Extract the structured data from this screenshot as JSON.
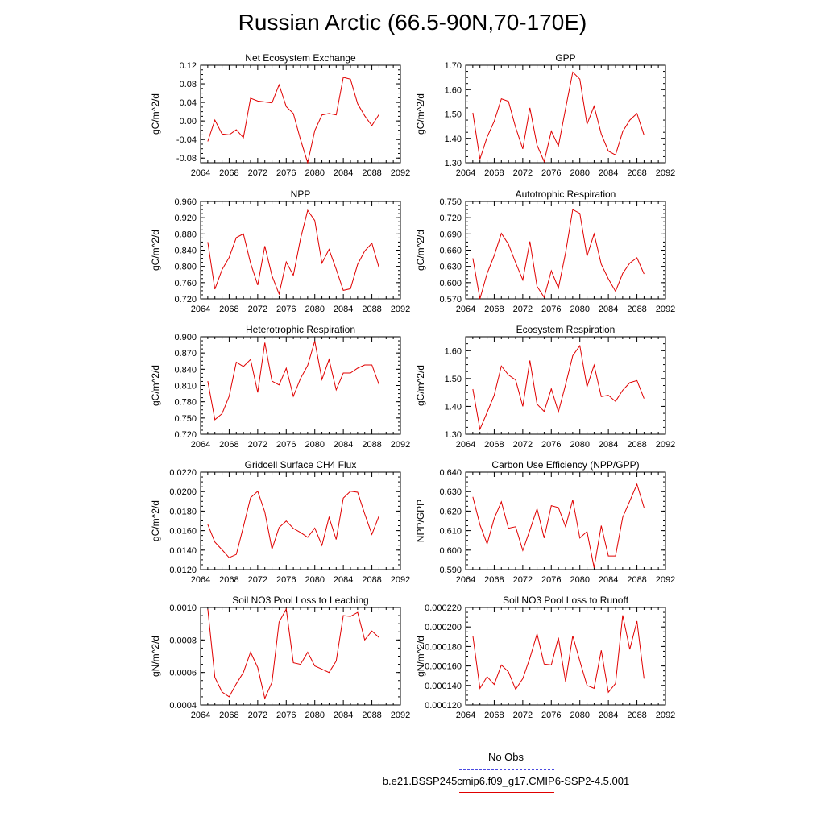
{
  "title": "Russian Arctic (66.5-90N,70-170E)",
  "legend": {
    "obs_label": "No Obs",
    "model_label": "b.e21.BSSP245cmip6.f09_g17.CMIP6-SSP2-4.5.001",
    "obs_color": "#4a4ae0",
    "model_color": "#e00000"
  },
  "chart_data": [
    {
      "type": "line",
      "title": "Net Ecosystem Exchange",
      "ylabel": "gC/m^2/d",
      "xlabel": "",
      "xlim": [
        2064,
        2092
      ],
      "ylim": [
        -0.09,
        0.12
      ],
      "xticks": [
        "2064",
        "2068",
        "2072",
        "2076",
        "2080",
        "2084",
        "2088",
        "2092"
      ],
      "yticks": [
        "-0.08",
        "-0.04",
        "0.00",
        "0.04",
        "0.08",
        "0.12"
      ],
      "x": [
        2065,
        2066,
        2067,
        2068,
        2069,
        2070,
        2071,
        2072,
        2073,
        2074,
        2075,
        2076,
        2077,
        2078,
        2079,
        2080,
        2081,
        2082,
        2083,
        2084,
        2085,
        2086,
        2087,
        2088,
        2089
      ],
      "values": [
        -0.044,
        0.002,
        -0.028,
        -0.03,
        -0.019,
        -0.036,
        0.049,
        0.043,
        0.041,
        0.039,
        0.078,
        0.031,
        0.016,
        -0.04,
        -0.09,
        -0.021,
        0.013,
        0.016,
        0.013,
        0.094,
        0.09,
        0.037,
        0.011,
        -0.01,
        0.014
      ]
    },
    {
      "type": "line",
      "title": "GPP",
      "ylabel": "gC/m^2/d",
      "xlabel": "",
      "xlim": [
        2064,
        2092
      ],
      "ylim": [
        1.3,
        1.7
      ],
      "xticks": [
        "2064",
        "2068",
        "2072",
        "2076",
        "2080",
        "2084",
        "2088",
        "2092"
      ],
      "yticks": [
        "1.30",
        "1.40",
        "1.50",
        "1.60",
        "1.70"
      ],
      "x": [
        2065,
        2066,
        2067,
        2068,
        2069,
        2070,
        2071,
        2072,
        2073,
        2074,
        2075,
        2076,
        2077,
        2078,
        2079,
        2080,
        2081,
        2082,
        2083,
        2084,
        2085,
        2086,
        2087,
        2088,
        2089
      ],
      "values": [
        1.505,
        1.315,
        1.405,
        1.47,
        1.562,
        1.552,
        1.445,
        1.357,
        1.525,
        1.372,
        1.305,
        1.43,
        1.368,
        1.522,
        1.672,
        1.643,
        1.458,
        1.532,
        1.418,
        1.348,
        1.332,
        1.428,
        1.475,
        1.502,
        1.413
      ]
    },
    {
      "type": "line",
      "title": "NPP",
      "ylabel": "gC/m^2/d",
      "xlabel": "",
      "xlim": [
        2064,
        2092
      ],
      "ylim": [
        0.72,
        0.96
      ],
      "xticks": [
        "2064",
        "2068",
        "2072",
        "2076",
        "2080",
        "2084",
        "2088",
        "2092"
      ],
      "yticks": [
        "0.720",
        "0.760",
        "0.800",
        "0.840",
        "0.880",
        "0.920",
        "0.960"
      ],
      "x": [
        2065,
        2066,
        2067,
        2068,
        2069,
        2070,
        2071,
        2072,
        2073,
        2074,
        2075,
        2076,
        2077,
        2078,
        2079,
        2080,
        2081,
        2082,
        2083,
        2084,
        2085,
        2086,
        2087,
        2088,
        2089
      ],
      "values": [
        0.86,
        0.744,
        0.792,
        0.822,
        0.871,
        0.88,
        0.808,
        0.754,
        0.85,
        0.777,
        0.732,
        0.811,
        0.778,
        0.868,
        0.938,
        0.913,
        0.808,
        0.842,
        0.793,
        0.741,
        0.745,
        0.805,
        0.838,
        0.857,
        0.797
      ]
    },
    {
      "type": "line",
      "title": "Autotrophic Respiration",
      "ylabel": "gC/m^2/d",
      "xlabel": "",
      "xlim": [
        2064,
        2092
      ],
      "ylim": [
        0.57,
        0.75
      ],
      "xticks": [
        "2064",
        "2068",
        "2072",
        "2076",
        "2080",
        "2084",
        "2088",
        "2092"
      ],
      "yticks": [
        "0.570",
        "0.600",
        "0.630",
        "0.660",
        "0.690",
        "0.720",
        "0.750"
      ],
      "x": [
        2065,
        2066,
        2067,
        2068,
        2069,
        2070,
        2071,
        2072,
        2073,
        2074,
        2075,
        2076,
        2077,
        2078,
        2079,
        2080,
        2081,
        2082,
        2083,
        2084,
        2085,
        2086,
        2087,
        2088,
        2089
      ],
      "values": [
        0.645,
        0.57,
        0.617,
        0.65,
        0.691,
        0.671,
        0.637,
        0.605,
        0.676,
        0.593,
        0.573,
        0.622,
        0.59,
        0.655,
        0.735,
        0.728,
        0.649,
        0.69,
        0.634,
        0.607,
        0.584,
        0.617,
        0.636,
        0.646,
        0.616
      ]
    },
    {
      "type": "line",
      "title": "Heterotrophic Respiration",
      "ylabel": "gC/m^2/d",
      "xlabel": "",
      "xlim": [
        2064,
        2092
      ],
      "ylim": [
        0.72,
        0.9
      ],
      "xticks": [
        "2064",
        "2068",
        "2072",
        "2076",
        "2080",
        "2084",
        "2088",
        "2092"
      ],
      "yticks": [
        "0.720",
        "0.750",
        "0.780",
        "0.810",
        "0.840",
        "0.870",
        "0.900"
      ],
      "x": [
        2065,
        2066,
        2067,
        2068,
        2069,
        2070,
        2071,
        2072,
        2073,
        2074,
        2075,
        2076,
        2077,
        2078,
        2079,
        2080,
        2081,
        2082,
        2083,
        2084,
        2085,
        2086,
        2087,
        2088,
        2089
      ],
      "values": [
        0.818,
        0.747,
        0.758,
        0.79,
        0.853,
        0.845,
        0.858,
        0.797,
        0.889,
        0.818,
        0.811,
        0.842,
        0.79,
        0.823,
        0.847,
        0.892,
        0.821,
        0.858,
        0.802,
        0.833,
        0.833,
        0.842,
        0.848,
        0.848,
        0.812
      ]
    },
    {
      "type": "line",
      "title": "Ecosystem Respiration",
      "ylabel": "gC/m^2/d",
      "xlabel": "",
      "xlim": [
        2064,
        2092
      ],
      "ylim": [
        1.3,
        1.65
      ],
      "xticks": [
        "2064",
        "2068",
        "2072",
        "2076",
        "2080",
        "2084",
        "2088",
        "2092"
      ],
      "yticks": [
        "1.30",
        "1.40",
        "1.50",
        "1.60"
      ],
      "x": [
        2065,
        2066,
        2067,
        2068,
        2069,
        2070,
        2071,
        2072,
        2073,
        2074,
        2075,
        2076,
        2077,
        2078,
        2079,
        2080,
        2081,
        2082,
        2083,
        2084,
        2085,
        2086,
        2087,
        2088,
        2089
      ],
      "values": [
        1.462,
        1.318,
        1.378,
        1.44,
        1.545,
        1.513,
        1.495,
        1.4,
        1.565,
        1.408,
        1.382,
        1.463,
        1.38,
        1.478,
        1.582,
        1.618,
        1.47,
        1.548,
        1.435,
        1.44,
        1.418,
        1.458,
        1.485,
        1.493,
        1.428
      ]
    },
    {
      "type": "line",
      "title": "Gridcell Surface CH4 Flux",
      "ylabel": "gC/m^2/d",
      "xlabel": "",
      "xlim": [
        2064,
        2092
      ],
      "ylim": [
        0.012,
        0.022
      ],
      "xticks": [
        "2064",
        "2068",
        "2072",
        "2076",
        "2080",
        "2084",
        "2088",
        "2092"
      ],
      "yticks": [
        "0.0120",
        "0.0140",
        "0.0160",
        "0.0180",
        "0.0200",
        "0.0220"
      ],
      "x": [
        2065,
        2066,
        2067,
        2068,
        2069,
        2070,
        2071,
        2072,
        2073,
        2074,
        2075,
        2076,
        2077,
        2078,
        2079,
        2080,
        2081,
        2082,
        2083,
        2084,
        2085,
        2086,
        2087,
        2088,
        2089
      ],
      "values": [
        0.01662,
        0.01482,
        0.01403,
        0.01322,
        0.01355,
        0.0164,
        0.01937,
        0.02003,
        0.01791,
        0.0141,
        0.01631,
        0.01698,
        0.01622,
        0.01581,
        0.01531,
        0.01626,
        0.01449,
        0.01736,
        0.01509,
        0.01933,
        0.02003,
        0.01993,
        0.01771,
        0.01561,
        0.0175
      ]
    },
    {
      "type": "line",
      "title": "Carbon Use Efficiency (NPP/GPP)",
      "ylabel": "NPP/GPP",
      "xlabel": "",
      "xlim": [
        2064,
        2092
      ],
      "ylim": [
        0.59,
        0.64
      ],
      "xticks": [
        "2064",
        "2068",
        "2072",
        "2076",
        "2080",
        "2084",
        "2088",
        "2092"
      ],
      "yticks": [
        "0.590",
        "0.600",
        "0.610",
        "0.620",
        "0.630",
        "0.640"
      ],
      "x": [
        2065,
        2066,
        2067,
        2068,
        2069,
        2070,
        2071,
        2072,
        2073,
        2074,
        2075,
        2076,
        2077,
        2078,
        2079,
        2080,
        2081,
        2082,
        2083,
        2084,
        2085,
        2086,
        2087,
        2088,
        2089
      ],
      "values": [
        0.6273,
        0.613,
        0.6032,
        0.6162,
        0.6248,
        0.6112,
        0.612,
        0.5998,
        0.6103,
        0.6212,
        0.6062,
        0.6228,
        0.6218,
        0.612,
        0.6258,
        0.6062,
        0.6095,
        0.591,
        0.6125,
        0.597,
        0.597,
        0.6168,
        0.6252,
        0.6338,
        0.6218
      ]
    },
    {
      "type": "line",
      "title": "Soil NO3 Pool Loss to Leaching",
      "ylabel": "gN/m^2/d",
      "xlabel": "",
      "xlim": [
        2064,
        2092
      ],
      "ylim": [
        0.0004,
        0.001
      ],
      "xticks": [
        "2064",
        "2068",
        "2072",
        "2076",
        "2080",
        "2084",
        "2088",
        "2092"
      ],
      "yticks": [
        "0.0004",
        "0.0006",
        "0.0008",
        "0.0010"
      ],
      "x": [
        2065,
        2066,
        2067,
        2068,
        2069,
        2070,
        2071,
        2072,
        2073,
        2074,
        2075,
        2076,
        2077,
        2078,
        2079,
        2080,
        2081,
        2082,
        2083,
        2084,
        2085,
        2086,
        2087,
        2088,
        2089
      ],
      "values": [
        0.00099,
        0.00057,
        0.00048,
        0.00045,
        0.00053,
        0.0006,
        0.000725,
        0.00063,
        0.00044,
        0.00054,
        0.00091,
        0.00099,
        0.00066,
        0.00065,
        0.000725,
        0.00064,
        0.00062,
        0.0006,
        0.00067,
        0.00095,
        0.000945,
        0.00097,
        0.0008,
        0.000855,
        0.000815
      ]
    },
    {
      "type": "line",
      "title": "Soil NO3 Pool Loss to Runoff",
      "ylabel": "gN/m^2/d",
      "xlabel": "",
      "xlim": [
        2064,
        2092
      ],
      "ylim": [
        0.00012,
        0.00022
      ],
      "xticks": [
        "2064",
        "2068",
        "2072",
        "2076",
        "2080",
        "2084",
        "2088",
        "2092"
      ],
      "yticks": [
        "0.000120",
        "0.000140",
        "0.000160",
        "0.000180",
        "0.000200",
        "0.000220"
      ],
      "x": [
        2065,
        2066,
        2067,
        2068,
        2069,
        2070,
        2071,
        2072,
        2073,
        2074,
        2075,
        2076,
        2077,
        2078,
        2079,
        2080,
        2081,
        2082,
        2083,
        2084,
        2085,
        2086,
        2087,
        2088,
        2089
      ],
      "values": [
        0.000191,
        0.000137,
        0.000149,
        0.000141,
        0.000161,
        0.000154,
        0.000136,
        0.000147,
        0.000168,
        0.000193,
        0.000162,
        0.000161,
        0.000189,
        0.000144,
        0.000191,
        0.000165,
        0.00014,
        0.000137,
        0.000176,
        0.000133,
        0.000142,
        0.000212,
        0.000177,
        0.000206,
        0.000147
      ]
    }
  ]
}
